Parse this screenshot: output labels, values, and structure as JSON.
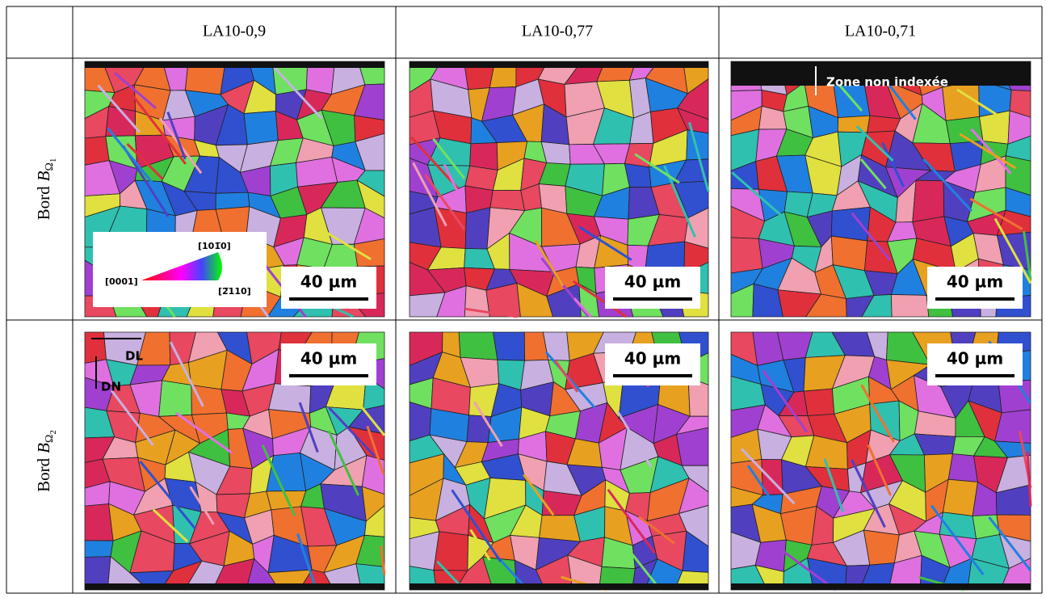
{
  "table": {
    "columns": [
      "LA10-0,9",
      "LA10-0,77",
      "LA10-0,71"
    ],
    "rows": [
      {
        "label": "Bord",
        "variable": "B",
        "subscript": "Ω",
        "index": "1",
        "cells": [
          {
            "scale_bar": "40 µm",
            "legend": [
              "[0001]",
              "[101̅0]",
              "[2̅110]"
            ]
          },
          {
            "scale_bar": "40 µm"
          },
          {
            "scale_bar": "40 µm",
            "annotation": "Zone non indexée"
          }
        ]
      },
      {
        "label": "Bord",
        "variable": "B",
        "subscript": "Ω",
        "index": "2",
        "cells": [
          {
            "scale_bar": "40 µm",
            "axes": [
              "DL",
              "DN"
            ]
          },
          {
            "scale_bar": "40 µm"
          },
          {
            "scale_bar": "40 µm"
          }
        ]
      }
    ]
  }
}
